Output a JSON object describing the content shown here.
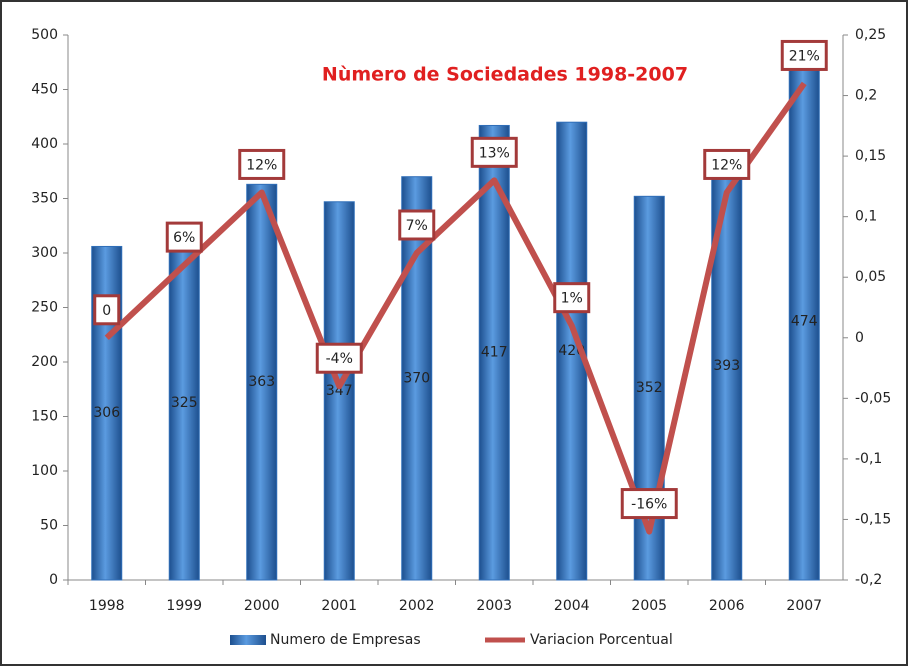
{
  "chart_data": {
    "type": "bar-line",
    "title": "Nùmero de Sociedades 1998-2007",
    "categories": [
      "1998",
      "1999",
      "2000",
      "2001",
      "2002",
      "2003",
      "2004",
      "2005",
      "2006",
      "2007"
    ],
    "series": [
      {
        "name": "Numero de Empresas",
        "color": "#2f6eb8",
        "type": "bar",
        "values": [
          306,
          325,
          363,
          347,
          370,
          417,
          420,
          352,
          393,
          474
        ]
      },
      {
        "name": "Variacion Porcentual",
        "color": "#c0504d",
        "type": "line",
        "axis": "y2",
        "values": [
          0,
          0.06,
          0.12,
          -0.04,
          0.07,
          0.13,
          0.01,
          -0.16,
          0.12,
          0.21
        ],
        "value_labels": [
          "0",
          "6%",
          "12%",
          "-4%",
          "7%",
          "13%",
          "1%",
          "-16%",
          "12%",
          "21%"
        ]
      }
    ],
    "ylim": [
      0,
      500
    ],
    "yticks": [
      0,
      50,
      100,
      150,
      200,
      250,
      300,
      350,
      400,
      450,
      500
    ],
    "y2lim": [
      -0.2,
      0.25
    ],
    "y2ticks": [
      {
        "value": -0.2,
        "label": "-0,2"
      },
      {
        "value": -0.15,
        "label": "-0,15"
      },
      {
        "value": -0.1,
        "label": "-0,1"
      },
      {
        "value": -0.05,
        "label": "-0,05"
      },
      0,
      {
        "value": 0.05,
        "label": "0,05"
      },
      {
        "value": 0.1,
        "label": "0,1"
      },
      {
        "value": 0.15,
        "label": "0,15"
      },
      {
        "value": 0.2,
        "label": "0,2"
      },
      {
        "value": 0.25,
        "label": "0,25"
      }
    ],
    "legend": "bottom"
  }
}
